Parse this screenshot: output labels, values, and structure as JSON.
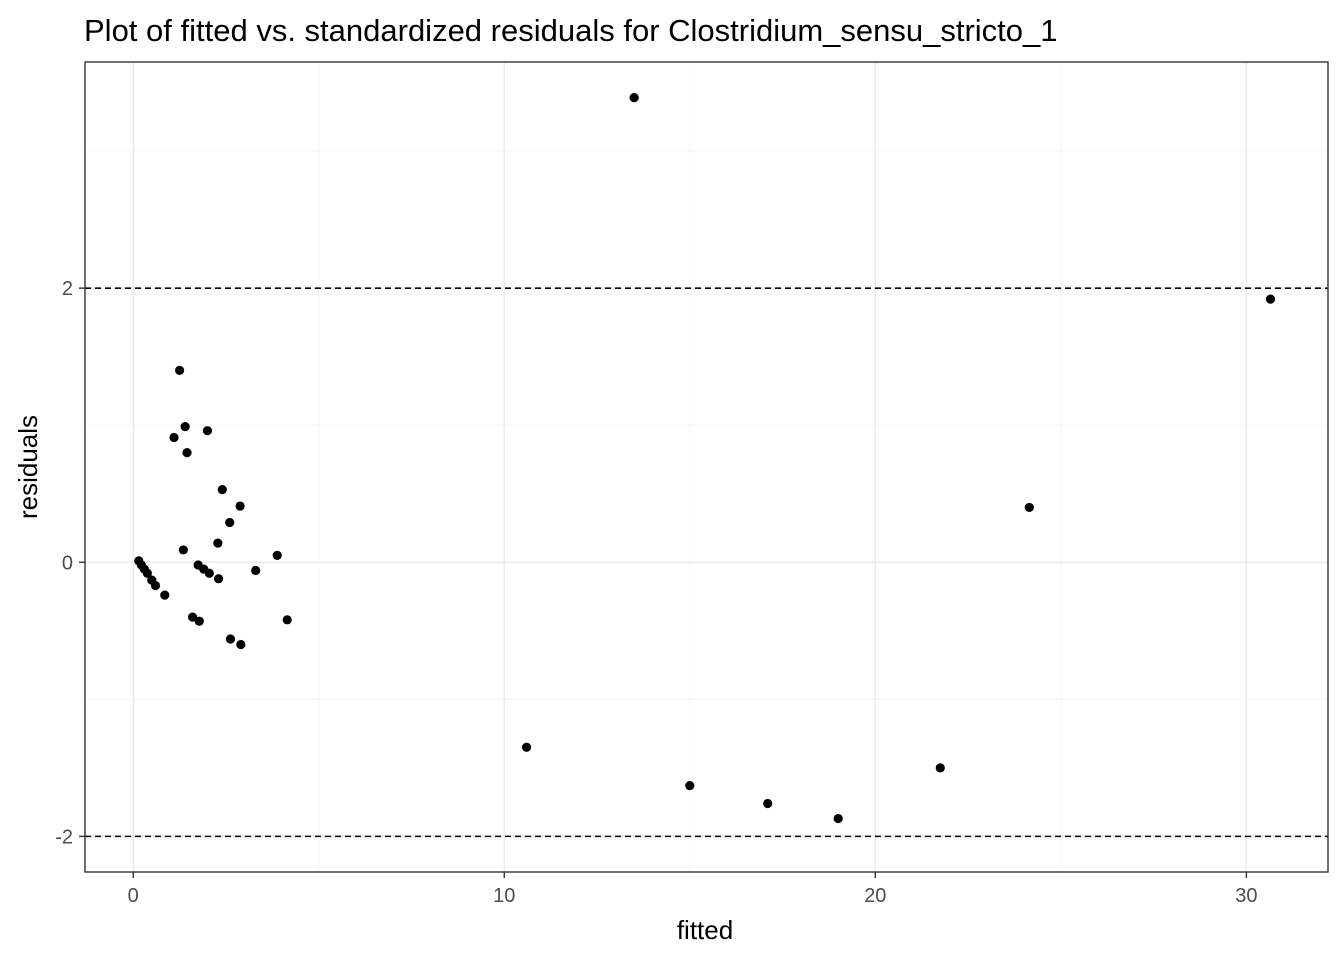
{
  "chart_data": {
    "type": "scatter",
    "title": "Plot of fitted vs. standardized residuals for Clostridium_sensu_stricto_1",
    "xlabel": "fitted",
    "ylabel": "residuals",
    "xlim": [
      -1.3,
      32.2
    ],
    "ylim": [
      -2.26,
      3.65
    ],
    "x_ticks": [
      0,
      10,
      20,
      30
    ],
    "y_ticks": [
      -2,
      0,
      2
    ],
    "x_tick_labels": [
      "0",
      "10",
      "20",
      "30"
    ],
    "y_tick_labels": [
      "-2",
      "0",
      "2"
    ],
    "grid": true,
    "reference_lines_y": [
      -2,
      2
    ],
    "points": [
      {
        "x": 0.15,
        "y": 0.01
      },
      {
        "x": 0.22,
        "y": -0.02
      },
      {
        "x": 0.3,
        "y": -0.05
      },
      {
        "x": 0.38,
        "y": -0.08
      },
      {
        "x": 0.5,
        "y": -0.13
      },
      {
        "x": 0.6,
        "y": -0.17
      },
      {
        "x": 0.85,
        "y": -0.24
      },
      {
        "x": 1.1,
        "y": 0.91
      },
      {
        "x": 1.25,
        "y": 1.4
      },
      {
        "x": 1.35,
        "y": 0.09
      },
      {
        "x": 1.4,
        "y": 0.99
      },
      {
        "x": 1.45,
        "y": 0.8
      },
      {
        "x": 1.6,
        "y": -0.4
      },
      {
        "x": 1.75,
        "y": -0.02
      },
      {
        "x": 1.78,
        "y": -0.43
      },
      {
        "x": 1.9,
        "y": -0.05
      },
      {
        "x": 2.0,
        "y": 0.96
      },
      {
        "x": 2.05,
        "y": -0.08
      },
      {
        "x": 2.28,
        "y": 0.14
      },
      {
        "x": 2.3,
        "y": -0.12
      },
      {
        "x": 2.4,
        "y": 0.53
      },
      {
        "x": 2.6,
        "y": 0.29
      },
      {
        "x": 2.62,
        "y": -0.56
      },
      {
        "x": 2.88,
        "y": 0.41
      },
      {
        "x": 2.9,
        "y": -0.6
      },
      {
        "x": 3.3,
        "y": -0.06
      },
      {
        "x": 3.88,
        "y": 0.05
      },
      {
        "x": 4.15,
        "y": -0.42
      },
      {
        "x": 10.6,
        "y": -1.35
      },
      {
        "x": 13.5,
        "y": 3.39
      },
      {
        "x": 15.0,
        "y": -1.63
      },
      {
        "x": 17.1,
        "y": -1.76
      },
      {
        "x": 19.0,
        "y": -1.87
      },
      {
        "x": 21.75,
        "y": -1.5
      },
      {
        "x": 24.15,
        "y": 0.4
      },
      {
        "x": 30.65,
        "y": 1.92
      }
    ],
    "point_color": "#000000"
  }
}
